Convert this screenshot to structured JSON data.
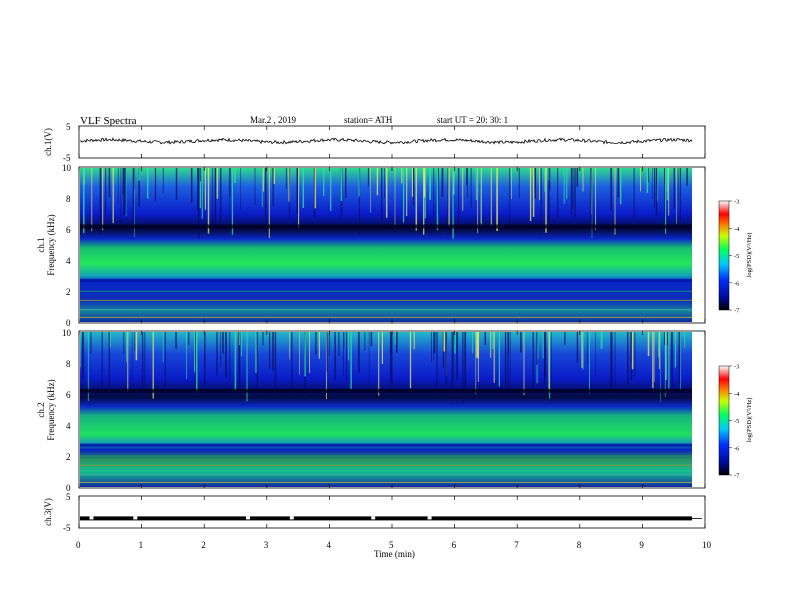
{
  "header": {
    "title": "VLF  Spectra",
    "date": "Mar.2  , 2019",
    "station": "station= ATH",
    "start": "start  UT  =    20: 30: 1"
  },
  "colors": {
    "spectrum_bg": "#0a1fd0",
    "band_bright": "#19e35a",
    "band_dark": "#050a45",
    "signal": "#000000"
  },
  "chart_data": [
    {
      "type": "line",
      "name": "ch1-waveform",
      "ylabel": "ch.1(V)",
      "yticks": [
        "5",
        "-5"
      ],
      "ylim": [
        -5,
        5
      ],
      "xlim": [
        0,
        10
      ],
      "approx_level": 0.3
    },
    {
      "type": "heatmap",
      "name": "ch1-spectrogram",
      "ylabel": "ch.1\nFrequency (kHz)",
      "yticks": [
        "0",
        "2",
        "4",
        "6",
        "8",
        "10"
      ],
      "ylim": [
        0,
        10
      ],
      "xlim": [
        0,
        10
      ],
      "colorbar": {
        "label": "log(PSD)(V²/Hz)",
        "ticks": [
          "-3",
          "-4",
          "-5",
          "-6",
          "-7"
        ],
        "range": [
          -7,
          -3
        ]
      }
    },
    {
      "type": "heatmap",
      "name": "ch2-spectrogram",
      "ylabel": "ch.2\nFrequency (kHz)",
      "yticks": [
        "0",
        "2",
        "4",
        "6",
        "8",
        "10"
      ],
      "ylim": [
        0,
        10
      ],
      "xlim": [
        0,
        10
      ],
      "colorbar": {
        "label": "log(PSD)(V²/Hz)",
        "ticks": [
          "-3",
          "-4",
          "-5",
          "-6",
          "-7"
        ],
        "range": [
          -7,
          -3
        ]
      }
    },
    {
      "type": "line",
      "name": "ch3-waveform",
      "ylabel": "ch.3(V)",
      "yticks": [
        "5",
        "-5"
      ],
      "ylim": [
        -5,
        5
      ],
      "xlim": [
        0,
        10
      ],
      "approx_level": -2.0,
      "gaps_min": [
        0.2,
        0.9,
        2.7,
        3.4,
        4.7,
        5.6
      ]
    }
  ],
  "xaxis": {
    "label": "Time  (min)",
    "ticks": [
      "0",
      "1",
      "2",
      "3",
      "4",
      "5",
      "6",
      "7",
      "8",
      "9",
      "10"
    ]
  }
}
